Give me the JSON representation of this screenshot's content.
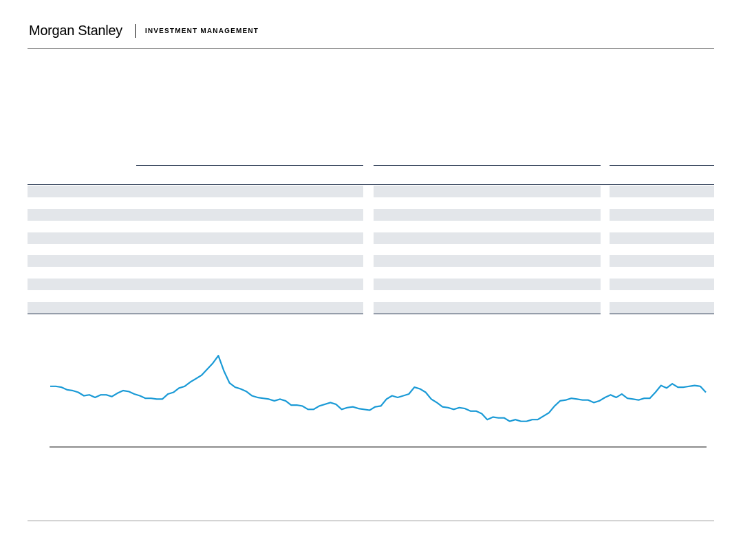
{
  "header": {
    "logo": "Morgan Stanley",
    "division": "INVESTMENT MANAGEMENT"
  },
  "table": {
    "columns": [
      "",
      "",
      ""
    ],
    "shaded_rows": 6
  },
  "chart_data": {
    "type": "line",
    "title": "",
    "xlabel": "",
    "ylabel": "",
    "ylim": [
      0,
      100
    ],
    "grid": false,
    "line_color": "#1a9ad6",
    "series": [
      {
        "values": [
          59,
          59,
          58,
          55,
          54,
          52,
          48,
          49,
          46,
          49,
          49,
          47,
          51,
          54,
          53,
          50,
          48,
          45,
          45,
          44,
          44,
          50,
          52,
          57,
          59,
          64,
          68,
          72,
          79,
          86,
          95,
          77,
          63,
          58,
          56,
          53,
          48,
          46,
          45,
          44,
          42,
          44,
          42,
          37,
          37,
          36,
          32,
          32,
          36,
          38,
          40,
          38,
          32,
          34,
          35,
          33,
          32,
          31,
          35,
          36,
          44,
          48,
          46,
          48,
          50,
          58,
          56,
          52,
          44,
          40,
          35,
          34,
          32,
          34,
          33,
          30,
          30,
          27,
          20,
          23,
          22,
          22,
          18,
          20,
          18,
          18,
          20,
          20,
          24,
          28,
          36,
          42,
          43,
          45,
          44,
          43,
          43,
          40,
          42,
          46,
          49,
          46,
          50,
          45,
          44,
          43,
          45,
          45,
          52,
          60,
          57,
          62,
          58,
          58,
          59,
          60,
          59,
          52
        ]
      }
    ]
  }
}
